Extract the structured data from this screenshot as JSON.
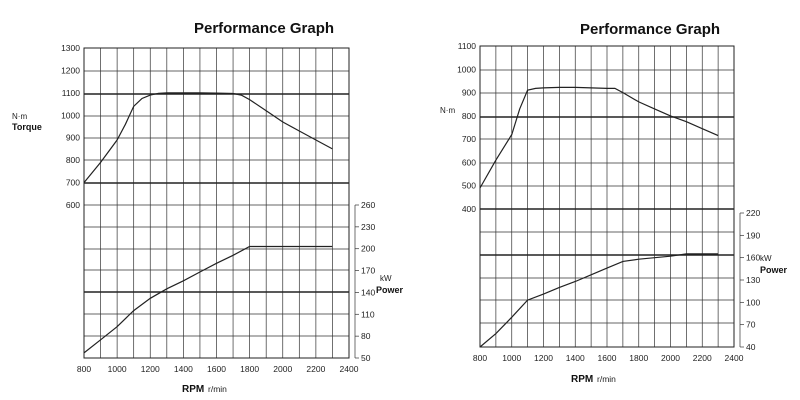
{
  "chart_data": [
    {
      "type": "line",
      "title": "Performance Graph",
      "xlabel": "RPM",
      "xunit": "r/min",
      "x_ticks": [
        800,
        1000,
        1200,
        1400,
        1600,
        1800,
        2000,
        2200,
        2400
      ],
      "xlim": [
        800,
        2400
      ],
      "torque": {
        "label_unit": "N·m",
        "label": "Torque",
        "ylim": [
          600,
          1300
        ],
        "y_ticks": [
          600,
          700,
          800,
          900,
          1000,
          1100,
          1200,
          1300
        ],
        "x": [
          800,
          900,
          1000,
          1050,
          1100,
          1150,
          1200,
          1250,
          1300,
          1400,
          1500,
          1600,
          1700,
          1750,
          1800,
          1900,
          2000,
          2100,
          2200,
          2300
        ],
        "y": [
          700,
          790,
          890,
          960,
          1040,
          1075,
          1090,
          1098,
          1100,
          1100,
          1100,
          1099,
          1097,
          1090,
          1070,
          1020,
          970,
          930,
          890,
          850
        ]
      },
      "power": {
        "label_unit": "kW",
        "label": "Power",
        "ylim": [
          50,
          260
        ],
        "y_ticks": [
          50,
          80,
          110,
          140,
          170,
          200,
          230,
          260
        ],
        "x": [
          800,
          900,
          1000,
          1100,
          1200,
          1300,
          1400,
          1500,
          1600,
          1700,
          1800,
          1900,
          2000,
          2100,
          2200,
          2300
        ],
        "y": [
          57,
          75,
          93,
          115,
          132,
          145,
          156,
          168,
          180,
          191,
          203,
          203,
          203,
          203,
          203,
          203
        ]
      }
    },
    {
      "type": "line",
      "title": "Performance Graph",
      "xlabel": "RPM",
      "xunit": "r/min",
      "x_ticks": [
        800,
        1000,
        1200,
        1400,
        1600,
        1800,
        2000,
        2200,
        2400
      ],
      "xlim": [
        800,
        2400
      ],
      "torque": {
        "label_unit": "N·m",
        "label": "",
        "ylim": [
          400,
          1100
        ],
        "y_ticks": [
          400,
          500,
          600,
          700,
          800,
          900,
          1000,
          1100
        ],
        "x": [
          800,
          900,
          1000,
          1050,
          1100,
          1150,
          1200,
          1300,
          1400,
          1500,
          1600,
          1650,
          1700,
          1800,
          1900,
          2000,
          2100,
          2200,
          2300
        ],
        "y": [
          490,
          610,
          720,
          830,
          910,
          918,
          920,
          922,
          922,
          920,
          918,
          918,
          900,
          860,
          830,
          800,
          775,
          745,
          715
        ]
      },
      "power": {
        "label_unit": "kW",
        "label": "Power",
        "ylim": [
          40,
          220
        ],
        "y_ticks": [
          40,
          70,
          100,
          130,
          160,
          190,
          220
        ],
        "x": [
          800,
          900,
          1000,
          1100,
          1200,
          1300,
          1400,
          1500,
          1600,
          1700,
          1800,
          1900,
          2000,
          2100,
          2200,
          2300
        ],
        "y": [
          40,
          58,
          80,
          103,
          111,
          120,
          128,
          137,
          146,
          155,
          158,
          160,
          162,
          165,
          165,
          165
        ]
      }
    }
  ]
}
